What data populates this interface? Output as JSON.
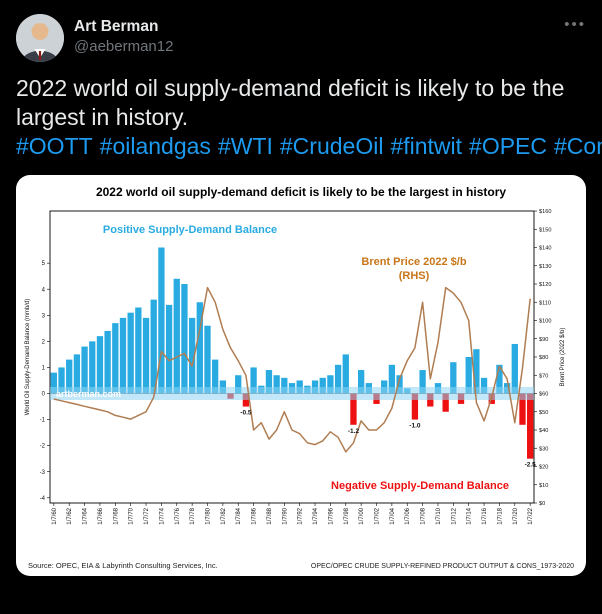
{
  "tweet": {
    "author": {
      "name": "Art Berman",
      "handle": "@aeberman12"
    },
    "more_label": "•••",
    "text": "2022 world oil supply-demand deficit is likely to be the largest in history.",
    "hashtags": [
      "#OOTT",
      "#oilandgas",
      "#WTI",
      "#CrudeOil",
      "#fintwit",
      "#OPEC",
      "#Commodities"
    ],
    "colors": {
      "background": "#000000",
      "text": "#e7e9ea",
      "secondary": "#71767b",
      "link": "#1d9bf0"
    }
  },
  "chart_data": {
    "type": "bar",
    "title": "2022 world oil supply-demand deficit is likely to be the largest in history",
    "x_axis": {
      "years": [
        1960,
        1961,
        1962,
        1963,
        1964,
        1965,
        1966,
        1967,
        1968,
        1969,
        1970,
        1971,
        1972,
        1973,
        1974,
        1975,
        1976,
        1977,
        1978,
        1979,
        1980,
        1981,
        1982,
        1983,
        1984,
        1985,
        1986,
        1987,
        1988,
        1989,
        1990,
        1991,
        1992,
        1993,
        1994,
        1995,
        1996,
        1997,
        1998,
        1999,
        2000,
        2001,
        2002,
        2003,
        2004,
        2005,
        2006,
        2007,
        2008,
        2009,
        2010,
        2011,
        2012,
        2013,
        2014,
        2015,
        2016,
        2017,
        2018,
        2019,
        2020,
        2021,
        2022
      ],
      "tick_labels": [
        "1/7/60",
        "1/7/62",
        "1/7/64",
        "1/7/66",
        "1/7/68",
        "1/7/70",
        "1/7/72",
        "1/7/74",
        "1/7/76",
        "1/7/78",
        "1/7/80",
        "1/7/82",
        "1/7/84",
        "1/7/86",
        "1/7/88",
        "1/7/90",
        "1/7/92",
        "1/7/94",
        "1/7/96",
        "1/7/98",
        "1/7/00",
        "1/7/02",
        "1/7/04",
        "1/7/06",
        "1/7/08",
        "1/7/10",
        "1/7/12",
        "1/7/14",
        "1/7/16",
        "1/7/18",
        "1/7/20",
        "1/7/22"
      ]
    },
    "left_axis": {
      "label": "World Oil Supply-Demand Balance (mmb/d)",
      "min": -4.2,
      "max": 7.0,
      "ticks": [
        -4,
        -3,
        -2,
        -1,
        0,
        1,
        2,
        3,
        4,
        5
      ]
    },
    "right_axis": {
      "label": "Brent Price (2022 $/b)",
      "min": 0,
      "max": 160,
      "tick_step": 10,
      "tick_prefix": "$"
    },
    "series": [
      {
        "name": "World Oil Supply-Demand Balance (mmb/d)",
        "kind": "bar",
        "axis": "left",
        "color_positive": "#29abe2",
        "color_negative": "#ee1111",
        "values": [
          0.8,
          1.0,
          1.3,
          1.5,
          1.8,
          2.0,
          2.2,
          2.4,
          2.7,
          2.9,
          3.1,
          3.3,
          2.9,
          3.6,
          5.6,
          3.4,
          4.4,
          4.2,
          2.9,
          3.5,
          2.6,
          1.3,
          0.5,
          -0.2,
          0.7,
          -0.5,
          1.0,
          0.3,
          0.9,
          0.7,
          0.6,
          0.4,
          0.5,
          0.3,
          0.5,
          0.6,
          0.7,
          1.1,
          1.5,
          -1.2,
          0.9,
          0.4,
          -0.4,
          0.5,
          1.1,
          0.7,
          0.2,
          -1.0,
          0.9,
          -0.5,
          0.4,
          -0.7,
          1.2,
          -0.4,
          1.4,
          1.7,
          0.6,
          -0.4,
          1.1,
          0.4,
          1.9,
          -1.2,
          -2.5
        ]
      },
      {
        "name": "Brent Price 2022 $/b (RHS)",
        "kind": "line",
        "axis": "right",
        "color": "#b07d52",
        "values": [
          57,
          56,
          55,
          54,
          53,
          52,
          51,
          50,
          48,
          47,
          46,
          48,
          50,
          58,
          83,
          78,
          80,
          82,
          75,
          95,
          118,
          110,
          95,
          85,
          78,
          70,
          40,
          44,
          35,
          40,
          50,
          40,
          38,
          33,
          32,
          34,
          39,
          36,
          28,
          33,
          45,
          40,
          40,
          44,
          52,
          68,
          78,
          85,
          110,
          68,
          88,
          118,
          115,
          110,
          100,
          55,
          45,
          58,
          75,
          68,
          44,
          74,
          112
        ]
      }
    ],
    "annotations": {
      "positive": "Positive Supply-Demand Balance",
      "positive_color": "#29abe2",
      "negative": "Negative Supply-Demand Balance",
      "negative_color": "#ee1111",
      "brent_line1": "Brent Price 2022 $/b",
      "brent_line2": "(RHS)",
      "brent_color": "#c87619",
      "watermark": "artberman.com",
      "watermark_band_color": "#8ed4f2",
      "bar_labels": [
        {
          "year": 1985,
          "text": "-0.5"
        },
        {
          "year": 1999,
          "text": "-1.2"
        },
        {
          "year": 2007,
          "text": "-1.0"
        },
        {
          "year": 2022,
          "text": "-2.5"
        }
      ]
    },
    "source_left": "Source: OPEC, EIA & Labyrinth Consulting Services, Inc.",
    "source_right": "OPEC/OPEC CRUDE SUPPLY-REFINED PRODUCT OUTPUT & CONS_1973-2020"
  }
}
